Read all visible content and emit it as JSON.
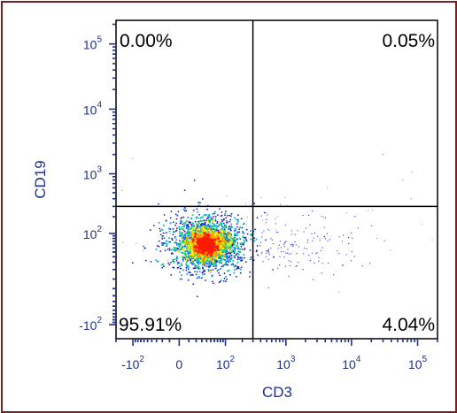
{
  "chart_data": {
    "type": "scatter",
    "style": "pseudocolor-density",
    "xlabel": "CD3",
    "ylabel": "CD19",
    "xscale": "biexponential",
    "yscale": "biexponential",
    "x_ticks": [
      {
        "value": -100,
        "label_base": "-10",
        "label_exp": "2"
      },
      {
        "value": 0,
        "label_base": "0",
        "label_exp": ""
      },
      {
        "value": 100,
        "label_base": "10",
        "label_exp": "2"
      },
      {
        "value": 1000,
        "label_base": "10",
        "label_exp": "3"
      },
      {
        "value": 10000,
        "label_base": "10",
        "label_exp": "4"
      },
      {
        "value": 100000,
        "label_base": "10",
        "label_exp": "5"
      }
    ],
    "y_ticks": [
      {
        "value": -100,
        "label_base": "-10",
        "label_exp": "2"
      },
      {
        "value": 100,
        "label_base": "10",
        "label_exp": "2"
      },
      {
        "value": 1000,
        "label_base": "10",
        "label_exp": "3"
      },
      {
        "value": 10000,
        "label_base": "10",
        "label_exp": "4"
      },
      {
        "value": 100000,
        "label_base": "10",
        "label_exp": "5"
      }
    ],
    "quadrant_gate": {
      "x": 300,
      "y": 300
    },
    "quadrants": {
      "upper_left": "0.00%",
      "upper_right": "0.05%",
      "lower_left": "95.91%",
      "lower_right": "4.04%"
    },
    "main_population": {
      "x_center": 40,
      "y_center": 60
    },
    "density_colors": [
      "#1a1ab0",
      "#00aaee",
      "#22dd66",
      "#ffee00",
      "#ff9900",
      "#ff1a00"
    ]
  }
}
